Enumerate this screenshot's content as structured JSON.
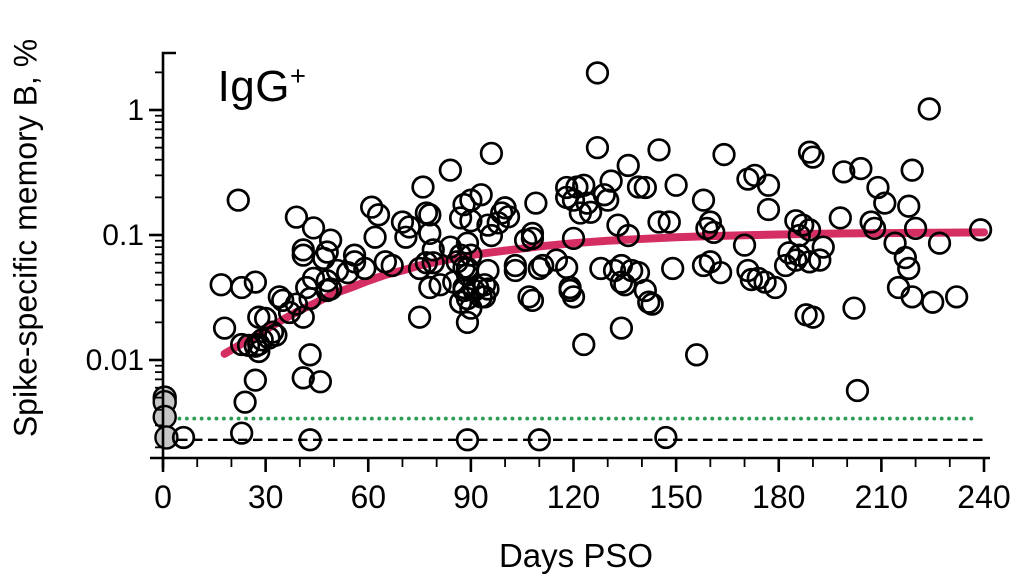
{
  "title": {
    "base": "IgG",
    "sup": "+"
  },
  "chart_data": {
    "type": "scatter",
    "title": "IgG+",
    "xlabel": "Days PSO",
    "ylabel": "Spike-specific memory B, %",
    "x_axis": {
      "min": 0,
      "max": 240,
      "major_tick_step": 30,
      "minor_tick_step": 10,
      "tick_labels": [
        "0",
        "30",
        "60",
        "90",
        "120",
        "150",
        "180",
        "210",
        "240"
      ]
    },
    "y_axis": {
      "scale": "log",
      "min": 0.0017,
      "max": 2.9,
      "log_minor_ticks": true,
      "ticks": [
        {
          "value": 1,
          "label": "1"
        },
        {
          "value": 0.1,
          "label": "0.1"
        },
        {
          "value": 0.01,
          "label": "0.01"
        }
      ]
    },
    "reference_lines": [
      {
        "name": "background-dotted-line",
        "style": "dotted",
        "color": "#2e9b57",
        "y": 0.0034
      },
      {
        "name": "limit-of-detection-dashed-line",
        "style": "dashed",
        "color": "#000000",
        "y": 0.0023
      }
    ],
    "fit_curve": {
      "name": "nonlinear-fit",
      "color": "#d42e62",
      "points": [
        [
          18,
          0.0112
        ],
        [
          22,
          0.013
        ],
        [
          26,
          0.015
        ],
        [
          30,
          0.0175
        ],
        [
          35,
          0.021
        ],
        [
          40,
          0.025
        ],
        [
          45,
          0.029
        ],
        [
          50,
          0.034
        ],
        [
          55,
          0.038
        ],
        [
          60,
          0.043
        ],
        [
          65,
          0.048
        ],
        [
          70,
          0.052
        ],
        [
          75,
          0.057
        ],
        [
          80,
          0.061
        ],
        [
          85,
          0.065
        ],
        [
          90,
          0.069
        ],
        [
          95,
          0.072
        ],
        [
          100,
          0.075
        ],
        [
          110,
          0.081
        ],
        [
          120,
          0.086
        ],
        [
          130,
          0.09
        ],
        [
          140,
          0.093
        ],
        [
          150,
          0.096
        ],
        [
          160,
          0.098
        ],
        [
          170,
          0.0995
        ],
        [
          180,
          0.101
        ],
        [
          190,
          0.102
        ],
        [
          200,
          0.103
        ],
        [
          210,
          0.1035
        ],
        [
          220,
          0.104
        ],
        [
          230,
          0.1045
        ],
        [
          240,
          0.105
        ]
      ]
    },
    "series": [
      {
        "name": "spike-specific-memory-B-donors",
        "marker": "open-circle",
        "stroke": "#000000",
        "fill": "none",
        "points": [
          [
            22,
            0.19
          ],
          [
            39,
            0.139
          ],
          [
            44,
            0.114
          ],
          [
            49,
            0.091
          ],
          [
            41,
            0.076
          ],
          [
            48,
            0.073
          ],
          [
            56,
            0.069
          ],
          [
            61,
            0.167
          ],
          [
            63,
            0.145
          ],
          [
            62,
            0.096
          ],
          [
            70,
            0.127
          ],
          [
            71,
            0.096
          ],
          [
            76,
            0.242
          ],
          [
            77,
            0.15
          ],
          [
            78,
            0.103
          ],
          [
            84,
            0.33
          ],
          [
            84,
            0.08
          ],
          [
            127,
            1.98
          ],
          [
            96,
            0.45
          ],
          [
            127,
            0.5
          ],
          [
            145,
            0.48
          ],
          [
            164,
            0.44
          ],
          [
            136,
            0.36
          ],
          [
            171,
            0.28
          ],
          [
            93,
            0.21
          ],
          [
            90,
            0.19
          ],
          [
            88,
            0.175
          ],
          [
            99,
            0.15
          ],
          [
            100,
            0.165
          ],
          [
            98,
            0.125
          ],
          [
            95,
            0.12
          ],
          [
            90,
            0.13
          ],
          [
            109,
            0.18
          ],
          [
            108,
            0.103
          ],
          [
            118,
            0.24
          ],
          [
            121,
            0.242
          ],
          [
            123,
            0.25
          ],
          [
            118,
            0.2
          ],
          [
            120,
            0.19
          ],
          [
            124,
            0.18
          ],
          [
            125,
            0.152
          ],
          [
            131,
            0.27
          ],
          [
            129,
            0.21
          ],
          [
            130,
            0.19
          ],
          [
            139,
            0.242
          ],
          [
            141,
            0.24
          ],
          [
            150,
            0.25
          ],
          [
            158,
            0.19
          ],
          [
            160,
            0.127
          ],
          [
            161,
            0.105
          ],
          [
            159,
            0.113
          ],
          [
            145,
            0.127
          ],
          [
            148,
            0.127
          ],
          [
            133,
            0.12
          ],
          [
            136,
            0.099
          ],
          [
            120,
            0.094
          ],
          [
            106,
            0.091
          ],
          [
            170,
            0.083
          ],
          [
            173,
            0.3
          ],
          [
            224,
            1.02
          ],
          [
            189,
            0.46
          ],
          [
            190,
            0.42
          ],
          [
            199,
            0.32
          ],
          [
            204,
            0.34
          ],
          [
            209,
            0.24
          ],
          [
            211,
            0.18
          ],
          [
            219,
            0.33
          ],
          [
            218,
            0.17
          ],
          [
            177,
            0.25
          ],
          [
            177,
            0.16
          ],
          [
            198,
            0.137
          ],
          [
            185,
            0.13
          ],
          [
            187,
            0.12
          ],
          [
            186,
            0.099
          ],
          [
            189,
            0.11
          ],
          [
            207,
            0.127
          ],
          [
            208,
            0.113
          ],
          [
            220,
            0.113
          ],
          [
            227,
            0.086
          ],
          [
            214,
            0.086
          ],
          [
            239,
            0.11
          ],
          [
            193,
            0.08
          ],
          [
            183,
            0.072
          ],
          [
            186,
            0.069
          ],
          [
            217,
            0.066
          ],
          [
            17,
            0.04
          ],
          [
            23,
            0.038
          ],
          [
            27,
            0.042
          ],
          [
            18,
            0.018
          ],
          [
            23,
            0.0133
          ],
          [
            25,
            0.0131
          ],
          [
            27,
            0.0129
          ],
          [
            28,
            0.0133
          ],
          [
            29,
            0.0145
          ],
          [
            31,
            0.015
          ],
          [
            28,
            0.0117
          ],
          [
            28,
            0.022
          ],
          [
            30,
            0.0215
          ],
          [
            32,
            0.0167
          ],
          [
            33,
            0.0158
          ],
          [
            35,
            0.03
          ],
          [
            37,
            0.024
          ],
          [
            39,
            0.028
          ],
          [
            41,
            0.022
          ],
          [
            34,
            0.032
          ],
          [
            42,
            0.038
          ],
          [
            43,
            0.031
          ],
          [
            44,
            0.045
          ],
          [
            48,
            0.043
          ],
          [
            48,
            0.036
          ],
          [
            49,
            0.037
          ],
          [
            51,
            0.052
          ],
          [
            54,
            0.05
          ],
          [
            56,
            0.061
          ],
          [
            59,
            0.054
          ],
          [
            65,
            0.061
          ],
          [
            67,
            0.057
          ],
          [
            75,
            0.054
          ],
          [
            77,
            0.06
          ],
          [
            41,
            0.069
          ],
          [
            47,
            0.065
          ],
          [
            43,
            0.011
          ],
          [
            41,
            0.0072
          ],
          [
            46,
            0.0067
          ],
          [
            27,
            0.0069
          ],
          [
            24,
            0.0046
          ],
          [
            23,
            0.0026
          ],
          [
            43,
            0.0023
          ],
          [
            6,
            0.0024
          ],
          [
            89,
            0.054
          ],
          [
            95,
            0.052
          ],
          [
            88,
            0.038
          ],
          [
            92,
            0.038
          ],
          [
            95,
            0.037
          ],
          [
            89,
            0.031
          ],
          [
            94,
            0.032
          ],
          [
            89,
            0.02
          ],
          [
            86,
            0.061
          ],
          [
            103,
            0.052
          ],
          [
            110,
            0.054
          ],
          [
            107,
            0.032
          ],
          [
            118,
            0.055
          ],
          [
            119,
            0.038
          ],
          [
            120,
            0.032
          ],
          [
            128,
            0.054
          ],
          [
            134,
            0.057
          ],
          [
            132,
            0.052
          ],
          [
            137,
            0.052
          ],
          [
            139,
            0.05
          ],
          [
            135,
            0.04
          ],
          [
            134,
            0.042
          ],
          [
            141,
            0.036
          ],
          [
            142,
            0.029
          ],
          [
            143,
            0.028
          ],
          [
            149,
            0.054
          ],
          [
            158,
            0.057
          ],
          [
            160,
            0.061
          ],
          [
            163,
            0.05
          ],
          [
            171,
            0.052
          ],
          [
            172,
            0.044
          ],
          [
            134,
            0.018
          ],
          [
            123,
            0.0133
          ],
          [
            156,
            0.011
          ],
          [
            89,
            0.0023
          ],
          [
            110,
            0.0023
          ],
          [
            147,
            0.0024
          ],
          [
            182,
            0.057
          ],
          [
            185,
            0.063
          ],
          [
            189,
            0.061
          ],
          [
            192,
            0.063
          ],
          [
            176,
            0.042
          ],
          [
            179,
            0.038
          ],
          [
            174,
            0.045
          ],
          [
            218,
            0.054
          ],
          [
            215,
            0.038
          ],
          [
            219,
            0.032
          ],
          [
            225,
            0.029
          ],
          [
            232,
            0.032
          ],
          [
            188,
            0.023
          ],
          [
            190,
            0.022
          ],
          [
            202,
            0.026
          ],
          [
            203,
            0.0057
          ],
          [
            78,
            0.145
          ],
          [
            72,
            0.116
          ],
          [
            79,
            0.076
          ],
          [
            79,
            0.06
          ],
          [
            78,
            0.038
          ],
          [
            81,
            0.04
          ],
          [
            87,
            0.137
          ],
          [
            89,
            0.086
          ],
          [
            90,
            0.069
          ],
          [
            87,
            0.069
          ],
          [
            88,
            0.055
          ],
          [
            89,
            0.048
          ],
          [
            85,
            0.042
          ],
          [
            88,
            0.036
          ],
          [
            91,
            0.036
          ],
          [
            94,
            0.04
          ],
          [
            93,
            0.032
          ],
          [
            87,
            0.029
          ],
          [
            90,
            0.026
          ],
          [
            96,
            0.099
          ],
          [
            101,
            0.14
          ],
          [
            108,
            0.094
          ],
          [
            103,
            0.057
          ],
          [
            111,
            0.057
          ],
          [
            115,
            0.063
          ],
          [
            119,
            0.036
          ],
          [
            108,
            0.03
          ],
          [
            75,
            0.022
          ],
          [
            122,
            0.15
          ]
        ]
      },
      {
        "name": "day-0-baseline-samples",
        "marker": "filled-circle",
        "stroke": "#000000",
        "fill": "#c6c6c6",
        "points": [
          [
            0.5,
            0.005
          ],
          [
            0.5,
            0.0046
          ],
          [
            0.5,
            0.0035
          ],
          [
            1,
            0.0024
          ]
        ]
      }
    ]
  }
}
